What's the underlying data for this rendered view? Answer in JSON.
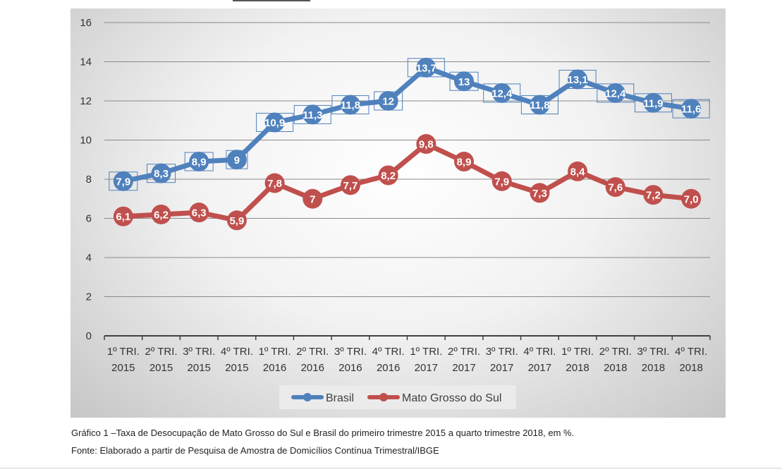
{
  "chart_data": {
    "type": "line",
    "categories": [
      [
        "1º TRI.",
        "2015"
      ],
      [
        "2º TRI.",
        "2015"
      ],
      [
        "3º TRI.",
        "2015"
      ],
      [
        "4º TRI.",
        "2015"
      ],
      [
        "1º TRI.",
        "2016"
      ],
      [
        "2º TRI.",
        "2016"
      ],
      [
        "3º TRI.",
        "2016"
      ],
      [
        "4º TRI.",
        "2016"
      ],
      [
        "1º TRI.",
        "2017"
      ],
      [
        "2º TRI.",
        "2017"
      ],
      [
        "3º TRI.",
        "2017"
      ],
      [
        "4º TRI.",
        "2017"
      ],
      [
        "1º TRI.",
        "2018"
      ],
      [
        "2º TRI.",
        "2018"
      ],
      [
        "3º TRI.",
        "2018"
      ],
      [
        "4º TRI.",
        "2018"
      ]
    ],
    "series": [
      {
        "name": "Brasil",
        "color": "#4f81bd",
        "marker": "square",
        "values": [
          7.9,
          8.3,
          8.9,
          9,
          10.9,
          11.3,
          11.8,
          12,
          13.7,
          13,
          12.4,
          11.8,
          13.1,
          12.4,
          11.9,
          11.6
        ],
        "labels": [
          "7,9",
          "8,3",
          "8,9",
          "9",
          "10,9",
          "11,3",
          "11,8",
          "12",
          "13,7",
          "13",
          "12,4",
          "11,8",
          "13,1",
          "12,4",
          "11,9",
          "11,6"
        ]
      },
      {
        "name": "Mato Grosso do Sul",
        "color": "#c0504d",
        "marker": "circle",
        "values": [
          6.1,
          6.2,
          6.3,
          5.9,
          7.8,
          7,
          7.7,
          8.2,
          9.8,
          8.9,
          7.9,
          7.3,
          8.4,
          7.6,
          7.2,
          7.0
        ],
        "labels": [
          "6,1",
          "6,2",
          "6,3",
          "5,9",
          "7,8",
          "7",
          "7,7",
          "8,2",
          "9,8",
          "8,9",
          "7,9",
          "7,3",
          "8,4",
          "7,6",
          "7,2",
          "7,0"
        ]
      }
    ],
    "ylim": [
      0,
      16
    ],
    "yticks": [
      "0",
      "2",
      "4",
      "6",
      "8",
      "10",
      "12",
      "14",
      "16"
    ],
    "grid": true,
    "legend": "bottom"
  },
  "caption": "Gráfico 1 –Taxa de Desocupação de Mato Grosso do Sul e Brasil do primeiro trimestre 2015 a quarto trimestre 2018, em %.",
  "source": "Fonte: Elaborado a partir de Pesquisa de Amostra de Domicílios Contínua Trimestral/IBGE"
}
